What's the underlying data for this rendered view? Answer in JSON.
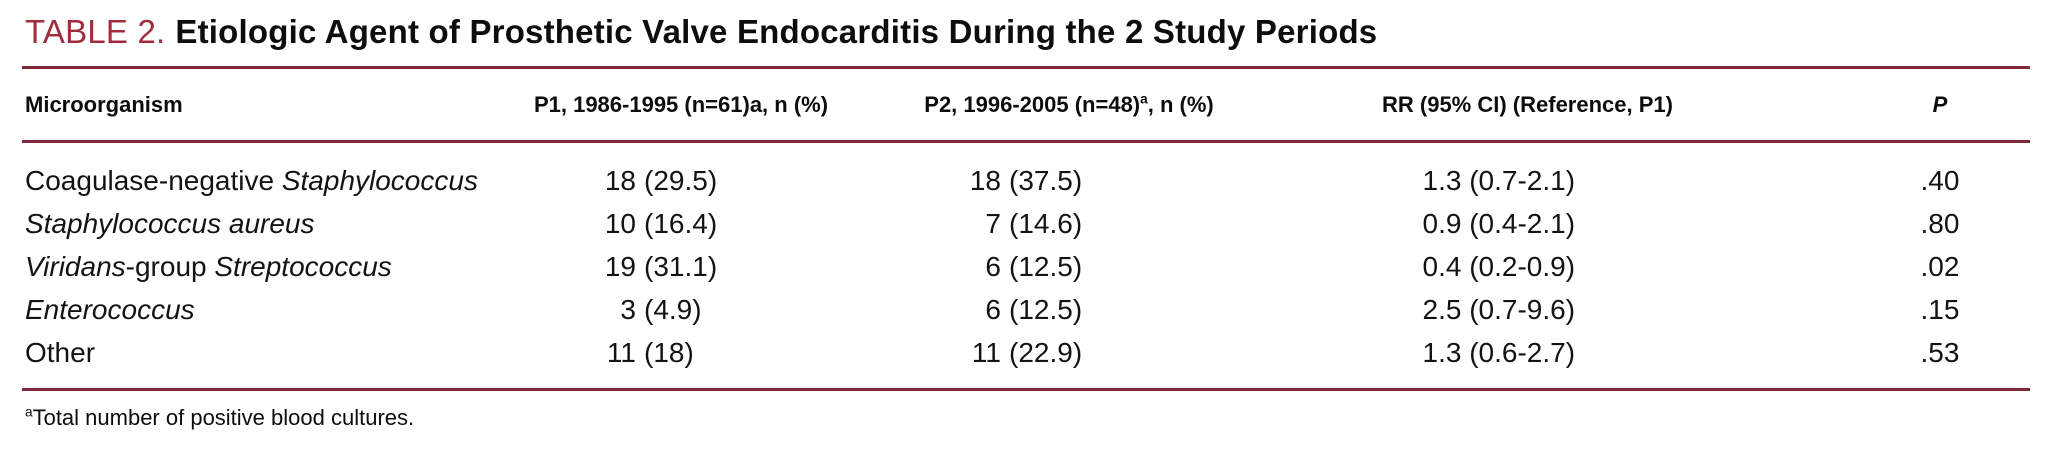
{
  "colors": {
    "accent": "#a02c3e",
    "rule": "#7e2a3a",
    "text": "#131313",
    "background": "#ffffff"
  },
  "title": {
    "label": "TABLE 2.",
    "text": "Etiologic Agent of Prosthetic Valve Endocarditis During the 2 Study Periods"
  },
  "table": {
    "columns": [
      {
        "id": "microorganism",
        "label": "Microorganism",
        "parts": [
          {
            "t": "Microorganism"
          }
        ]
      },
      {
        "id": "p1",
        "label": "P1, 1986-1995 (n=61)a, n (%)",
        "parts": [
          {
            "t": "P1, 1986-1995 (n=61)a, n (%)"
          }
        ]
      },
      {
        "id": "p2",
        "label": "P2, 1996-2005 (n=48)a, n (%)",
        "parts": [
          {
            "t": "P2, 1996-2005 (n=48)"
          },
          {
            "t": "a",
            "sup": true
          },
          {
            "t": ", n (%)"
          }
        ]
      },
      {
        "id": "rr",
        "label": "RR (95% CI) (Reference, P1)",
        "parts": [
          {
            "t": "RR (95% CI) (Reference, P1)"
          }
        ]
      },
      {
        "id": "p",
        "label": "P",
        "parts": [
          {
            "t": "P",
            "i": true
          }
        ]
      }
    ],
    "rows": [
      {
        "microorganism": [
          {
            "t": "Coagulase-negative "
          },
          {
            "t": "Staphylococcus",
            "i": true
          }
        ],
        "p1": {
          "n": "18",
          "pct": "(29.5)"
        },
        "p2": {
          "n": "18",
          "pct": "(37.5)"
        },
        "rr": "1.3 (0.7-2.1)",
        "p": ".40"
      },
      {
        "microorganism": [
          {
            "t": "Staphylococcus aureus",
            "i": true
          }
        ],
        "p1": {
          "n": "10",
          "pct": "(16.4)"
        },
        "p2": {
          "n": "7",
          "pct": "(14.6)"
        },
        "rr": "0.9 (0.4-2.1)",
        "p": ".80"
      },
      {
        "microorganism": [
          {
            "t": "Viridans",
            "i": true
          },
          {
            "t": "-group "
          },
          {
            "t": "Streptococcus",
            "i": true
          }
        ],
        "p1": {
          "n": "19",
          "pct": "(31.1)"
        },
        "p2": {
          "n": "6",
          "pct": "(12.5)"
        },
        "rr": "0.4 (0.2-0.9)",
        "p": ".02"
      },
      {
        "microorganism": [
          {
            "t": "Enterococcus",
            "i": true
          }
        ],
        "p1": {
          "n": "3",
          "pct": "(4.9)"
        },
        "p2": {
          "n": "6",
          "pct": "(12.5)"
        },
        "rr": "2.5 (0.7-9.6)",
        "p": ".15"
      },
      {
        "microorganism": [
          {
            "t": "Other"
          }
        ],
        "p1": {
          "n": "11",
          "pct": "(18)"
        },
        "p2": {
          "n": "11",
          "pct": "(22.9)"
        },
        "rr": "1.3 (0.6-2.7)",
        "p": ".53"
      }
    ]
  },
  "footnote": {
    "marker": "a",
    "text": "Total number of positive blood cultures."
  }
}
